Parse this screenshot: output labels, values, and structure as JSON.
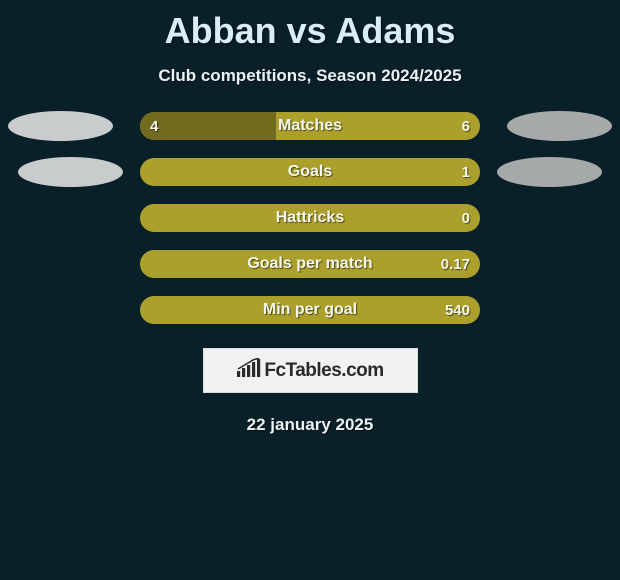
{
  "title": "Abban vs Adams",
  "subtitle": "Club competitions, Season 2024/2025",
  "date": "22 january 2025",
  "colors": {
    "background": "#0a2028",
    "bar_track": "#aca02c",
    "bar_fill": "#726a1e",
    "ellipse_left_1": "#c9cccc",
    "ellipse_left_2": "#c9cccc",
    "ellipse_right_1": "#a6a9a9",
    "ellipse_right_2": "#a6a9a9",
    "text": "#f5f7ec"
  },
  "rows": [
    {
      "label": "Matches",
      "left": "4",
      "right": "6",
      "left_pct": 40,
      "show_left": true
    },
    {
      "label": "Goals",
      "left": "",
      "right": "1",
      "left_pct": 0,
      "show_left": false
    },
    {
      "label": "Hattricks",
      "left": "",
      "right": "0",
      "left_pct": 0,
      "show_left": false
    },
    {
      "label": "Goals per match",
      "left": "",
      "right": "0.17",
      "left_pct": 0,
      "show_left": false
    },
    {
      "label": "Min per goal",
      "left": "",
      "right": "540",
      "left_pct": 0,
      "show_left": false
    }
  ],
  "ellipses": [
    {
      "side": "left",
      "row": 0,
      "color_key": "ellipse_left_1"
    },
    {
      "side": "left",
      "row": 1,
      "color_key": "ellipse_left_2"
    },
    {
      "side": "right",
      "row": 0,
      "color_key": "ellipse_right_1"
    },
    {
      "side": "right",
      "row": 1,
      "color_key": "ellipse_right_2"
    }
  ],
  "logo": {
    "text": "FcTables.com"
  }
}
